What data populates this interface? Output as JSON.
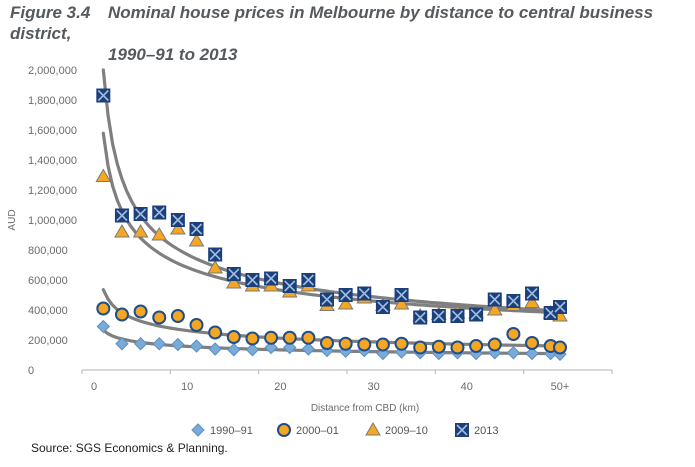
{
  "figure": {
    "number": "Figure 3.4",
    "title_line1": "Nominal house prices in Melbourne by distance to central business district,",
    "title_line2": "1990–91 to 2013"
  },
  "source": "Source: SGS Economics & Planning.",
  "chart_data": {
    "type": "scatter",
    "xlabel": "Distance from CBD (km)",
    "ylabel": "AUD",
    "xlim": [
      0,
      50
    ],
    "ylim": [
      0,
      2000000
    ],
    "x_ticks": [
      0,
      10,
      20,
      30,
      40,
      50
    ],
    "x_tick_labels": [
      "0",
      "10",
      "20",
      "30",
      "40",
      "50+"
    ],
    "y_ticks": [
      0,
      200000,
      400000,
      600000,
      800000,
      1000000,
      1200000,
      1400000,
      1600000,
      1800000,
      2000000
    ],
    "y_tick_labels": [
      "0",
      "200,000",
      "400,000",
      "600,000",
      "800,000",
      "1,000,000",
      "1,200,000",
      "1,400,000",
      "1,600,000",
      "1,800,000",
      "2,000,000"
    ],
    "grid": false,
    "legend_position": "bottom",
    "series": [
      {
        "name": "1990–91",
        "marker": "diamond",
        "color": "#7aaad8",
        "stroke": "#5c8fc2",
        "x": [
          1,
          3,
          5,
          7,
          9,
          11,
          13,
          15,
          17,
          19,
          21,
          23,
          25,
          27,
          29,
          31,
          33,
          35,
          37,
          39,
          41,
          43,
          45,
          47,
          49,
          50
        ],
        "y": [
          290000,
          175000,
          175000,
          175000,
          170000,
          160000,
          140000,
          135000,
          135000,
          150000,
          150000,
          140000,
          130000,
          125000,
          130000,
          110000,
          120000,
          115000,
          110000,
          115000,
          110000,
          115000,
          115000,
          110000,
          110000,
          105000
        ]
      },
      {
        "name": "2000–01",
        "marker": "circle",
        "color": "#f5a623",
        "stroke": "#1f4e8c",
        "x": [
          1,
          3,
          5,
          7,
          9,
          11,
          13,
          15,
          17,
          19,
          21,
          23,
          25,
          27,
          29,
          31,
          33,
          35,
          37,
          39,
          41,
          43,
          45,
          47,
          49,
          50
        ],
        "y": [
          410000,
          370000,
          390000,
          350000,
          360000,
          300000,
          250000,
          220000,
          210000,
          215000,
          215000,
          215000,
          180000,
          175000,
          170000,
          170000,
          175000,
          150000,
          155000,
          150000,
          160000,
          170000,
          240000,
          180000,
          160000,
          150000
        ]
      },
      {
        "name": "2009–10",
        "marker": "triangle",
        "color": "#f5a623",
        "stroke": "#7a7a7a",
        "x": [
          1,
          3,
          5,
          7,
          9,
          11,
          13,
          15,
          17,
          19,
          21,
          23,
          25,
          27,
          29,
          31,
          33,
          35,
          37,
          39,
          41,
          43,
          45,
          47,
          49,
          50
        ],
        "y": [
          1290000,
          920000,
          920000,
          900000,
          940000,
          860000,
          680000,
          580000,
          560000,
          560000,
          520000,
          560000,
          430000,
          440000,
          480000,
          430000,
          440000,
          360000,
          370000,
          380000,
          380000,
          400000,
          430000,
          450000,
          380000,
          360000
        ]
      },
      {
        "name": "2013",
        "marker": "x-square",
        "color": "#1c3f7a",
        "stroke": "#9dbce0",
        "x": [
          1,
          3,
          5,
          7,
          9,
          11,
          13,
          15,
          17,
          19,
          21,
          23,
          25,
          27,
          29,
          31,
          33,
          35,
          37,
          39,
          41,
          43,
          45,
          47,
          49,
          50
        ],
        "y": [
          1830000,
          1030000,
          1040000,
          1050000,
          1000000,
          940000,
          770000,
          640000,
          600000,
          610000,
          560000,
          600000,
          470000,
          500000,
          510000,
          420000,
          500000,
          350000,
          360000,
          360000,
          370000,
          470000,
          460000,
          510000,
          380000,
          420000
        ]
      }
    ],
    "trendlines": [
      {
        "series": "2013",
        "color": "#7f7f7f"
      },
      {
        "series": "2009–10",
        "color": "#7f7f7f"
      },
      {
        "series": "2000–01",
        "color": "#7f7f7f"
      },
      {
        "series": "1990–91",
        "color": "#7f7f7f"
      }
    ]
  }
}
